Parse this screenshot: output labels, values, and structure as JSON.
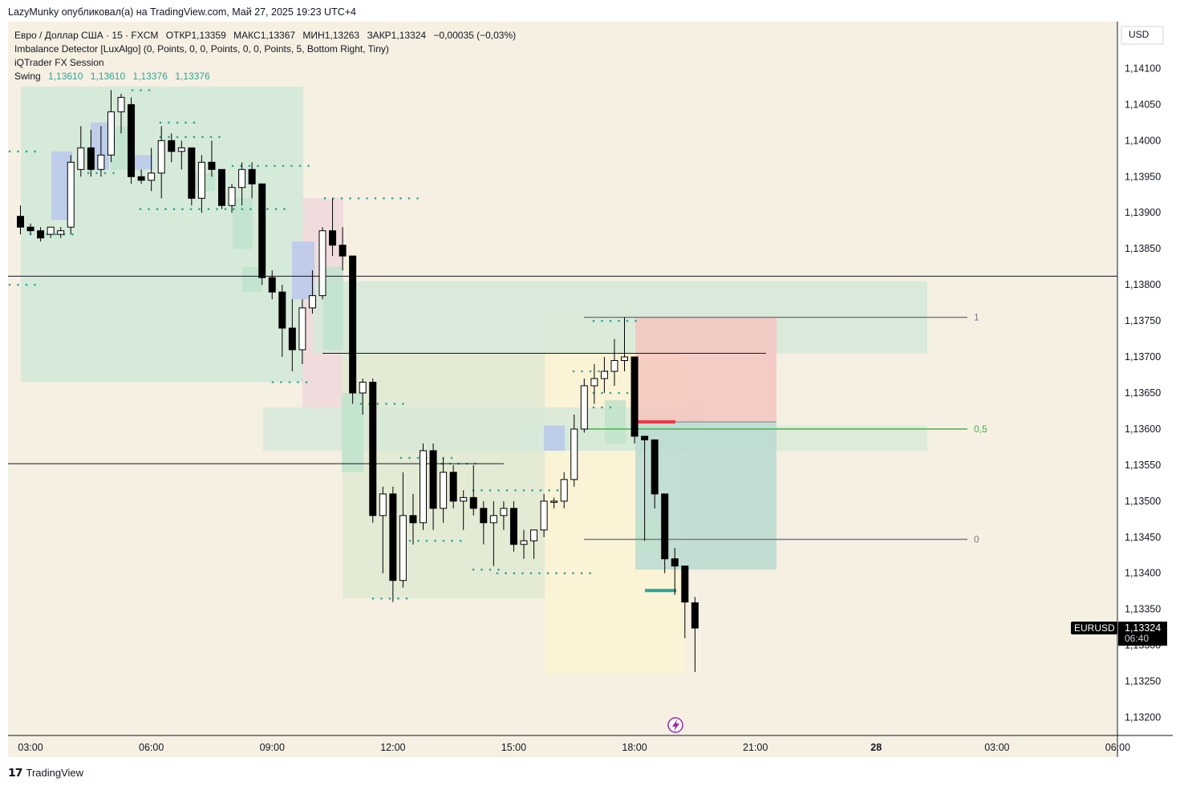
{
  "header": {
    "caption": "LazyMunky опубликовал(а) на TradingView.com, Май 27, 2025 19:23 UTC+4"
  },
  "legend": {
    "main": {
      "symbol": "Евро / Доллар США · 15 · FXCM",
      "open": "ОТКР1,13359",
      "high": "МАКС1,13367",
      "low": "МИН1,13263",
      "close": "ЗАКР1,13324",
      "change": "−0,00035 (−0,03%)"
    },
    "indicators": [
      "Imbalance Detector [LuxAlgo] (0, Points, 0, 0, Points, 0, 0, Points, 5, Bottom Right, Tiny)",
      "iQTrader FX Session"
    ],
    "swing": {
      "label": "Swing",
      "values": [
        "1,13610",
        "1,13610",
        "1,13376",
        "1,13376"
      ]
    }
  },
  "footer": {
    "logo": "𝟭𝟳",
    "brand": "TradingView"
  },
  "colors": {
    "bull": "#ffffff",
    "bear": "#000000",
    "wick": "#000000",
    "zone_green": "#d4e9d8",
    "zone_pink": "#f0d9dc",
    "zone_yellow": "#fbf3d5",
    "imb_blue": "#b8c8ec",
    "imb_green": "#bfe3cb",
    "teal_dots": "#26a69a",
    "fib_gray": "#787b86",
    "fib_green": "#4caf50",
    "red_marker": "#f23645",
    "long_target": "#f5c6bf",
    "long_stop": "#bcdcd1"
  },
  "chart_data": {
    "type": "candlestick",
    "symbol": "EURUSD",
    "currency": "USD",
    "timeframe": "15",
    "last_price": "1,13324",
    "countdown": "06:40",
    "ylim": [
      1.13175,
      1.14165
    ],
    "y_ticks": [
      "1,14100",
      "1,14050",
      "1,14000",
      "1,13950",
      "1,13900",
      "1,13850",
      "1,13800",
      "1,13750",
      "1,13700",
      "1,13650",
      "1,13600",
      "1,13550",
      "1,13500",
      "1,13450",
      "1,13400",
      "1,13350",
      "1,13300",
      "1,13250",
      "1,13200"
    ],
    "y_tick_values": [
      1.141,
      1.1405,
      1.14,
      1.1395,
      1.139,
      1.1385,
      1.138,
      1.1375,
      1.137,
      1.1365,
      1.136,
      1.1355,
      1.135,
      1.1345,
      1.134,
      1.1335,
      1.133,
      1.1325,
      1.132
    ],
    "x_ticks": [
      {
        "label": "03:00",
        "index": 1
      },
      {
        "label": "06:00",
        "index": 13
      },
      {
        "label": "09:00",
        "index": 25
      },
      {
        "label": "12:00",
        "index": 37
      },
      {
        "label": "15:00",
        "index": 49
      },
      {
        "label": "18:00",
        "index": 61
      },
      {
        "label": "21:00",
        "index": 73
      },
      {
        "label": "28",
        "index": 85
      },
      {
        "label": "03:00",
        "index": 97
      },
      {
        "label": "06:00",
        "index": 109
      }
    ],
    "candles": [
      [
        1.13895,
        1.1391,
        1.1387,
        1.1388
      ],
      [
        1.1388,
        1.13885,
        1.1387,
        1.13875
      ],
      [
        1.13875,
        1.1388,
        1.1386,
        1.13865
      ],
      [
        1.1387,
        1.1388,
        1.13865,
        1.1388
      ],
      [
        1.1387,
        1.1388,
        1.13865,
        1.13875
      ],
      [
        1.1388,
        1.1398,
        1.1387,
        1.1397
      ],
      [
        1.1396,
        1.1402,
        1.1395,
        1.1399
      ],
      [
        1.1399,
        1.14015,
        1.1395,
        1.1396
      ],
      [
        1.1396,
        1.1402,
        1.1395,
        1.1398
      ],
      [
        1.1398,
        1.1407,
        1.1397,
        1.1404
      ],
      [
        1.1404,
        1.14065,
        1.1401,
        1.1406
      ],
      [
        1.1405,
        1.1406,
        1.1394,
        1.1395
      ],
      [
        1.1395,
        1.1396,
        1.1394,
        1.13945
      ],
      [
        1.13945,
        1.1399,
        1.1393,
        1.13955
      ],
      [
        1.13955,
        1.1402,
        1.1392,
        1.14
      ],
      [
        1.14,
        1.1401,
        1.1397,
        1.13985
      ],
      [
        1.13985,
        1.14,
        1.1396,
        1.1399
      ],
      [
        1.1399,
        1.1399,
        1.1391,
        1.1392
      ],
      [
        1.1392,
        1.1398,
        1.139,
        1.1397
      ],
      [
        1.1397,
        1.14,
        1.1395,
        1.1396
      ],
      [
        1.1396,
        1.1396,
        1.13905,
        1.1391
      ],
      [
        1.1391,
        1.1394,
        1.139,
        1.13935
      ],
      [
        1.13935,
        1.1397,
        1.1391,
        1.1396
      ],
      [
        1.1396,
        1.1397,
        1.1392,
        1.1394
      ],
      [
        1.1394,
        1.1394,
        1.138,
        1.1381
      ],
      [
        1.1381,
        1.1382,
        1.1378,
        1.1379
      ],
      [
        1.1379,
        1.138,
        1.137,
        1.1374
      ],
      [
        1.1374,
        1.1378,
        1.1368,
        1.1371
      ],
      [
        1.1371,
        1.1378,
        1.1369,
        1.13768
      ],
      [
        1.13768,
        1.1382,
        1.1376,
        1.13785
      ],
      [
        1.13785,
        1.1388,
        1.1378,
        1.13875
      ],
      [
        1.13875,
        1.1392,
        1.1384,
        1.13855
      ],
      [
        1.13855,
        1.1388,
        1.1382,
        1.1384
      ],
      [
        1.1384,
        1.1384,
        1.13635,
        1.1365
      ],
      [
        1.1365,
        1.1367,
        1.1362,
        1.13665
      ],
      [
        1.13665,
        1.1367,
        1.1347,
        1.1348
      ],
      [
        1.1348,
        1.1352,
        1.134,
        1.1351
      ],
      [
        1.1351,
        1.1352,
        1.1336,
        1.1339
      ],
      [
        1.1339,
        1.1354,
        1.1338,
        1.1348
      ],
      [
        1.1348,
        1.1351,
        1.1344,
        1.1347
      ],
      [
        1.1347,
        1.1358,
        1.1346,
        1.1357
      ],
      [
        1.1357,
        1.1358,
        1.1346,
        1.1349
      ],
      [
        1.1349,
        1.1356,
        1.1347,
        1.1354
      ],
      [
        1.1354,
        1.1355,
        1.1349,
        1.135
      ],
      [
        1.135,
        1.13515,
        1.1346,
        1.13505
      ],
      [
        1.13505,
        1.1355,
        1.1348,
        1.1349
      ],
      [
        1.1349,
        1.135,
        1.1344,
        1.1347
      ],
      [
        1.1347,
        1.135,
        1.1341,
        1.1348
      ],
      [
        1.1348,
        1.135,
        1.1346,
        1.1349
      ],
      [
        1.1349,
        1.135,
        1.1343,
        1.1344
      ],
      [
        1.1344,
        1.1346,
        1.1342,
        1.13445
      ],
      [
        1.13445,
        1.1346,
        1.1342,
        1.1346
      ],
      [
        1.1346,
        1.1351,
        1.1345,
        1.135
      ],
      [
        1.135,
        1.13505,
        1.1349,
        1.135
      ],
      [
        1.135,
        1.1354,
        1.1349,
        1.1353
      ],
      [
        1.1353,
        1.1362,
        1.1352,
        1.136
      ],
      [
        1.136,
        1.1367,
        1.13595,
        1.1366
      ],
      [
        1.1366,
        1.1369,
        1.13635,
        1.1367
      ],
      [
        1.1367,
        1.137,
        1.1365,
        1.1368
      ],
      [
        1.1368,
        1.13725,
        1.1366,
        1.13695
      ],
      [
        1.13695,
        1.13755,
        1.1368,
        1.137
      ],
      [
        1.137,
        1.137,
        1.1358,
        1.1359
      ],
      [
        1.1359,
        1.1359,
        1.13445,
        1.13585
      ],
      [
        1.13585,
        1.1358,
        1.1349,
        1.1351
      ],
      [
        1.1351,
        1.1351,
        1.134,
        1.1342
      ],
      [
        1.1342,
        1.13435,
        1.1337,
        1.1341
      ],
      [
        1.1341,
        1.1341,
        1.1331,
        1.1336
      ],
      [
        1.13359,
        1.13367,
        1.13263,
        1.13324
      ]
    ],
    "annotations": {
      "fib_levels": [
        {
          "label": "1",
          "price": 1.13755
        },
        {
          "label": "0,5",
          "price": 1.136
        },
        {
          "label": "0",
          "price": 1.13447
        }
      ],
      "horizontal_lines": [
        1.13812,
        1.13705,
        1.13552
      ],
      "swing_high": 1.1361,
      "swing_low": 1.13376
    }
  }
}
